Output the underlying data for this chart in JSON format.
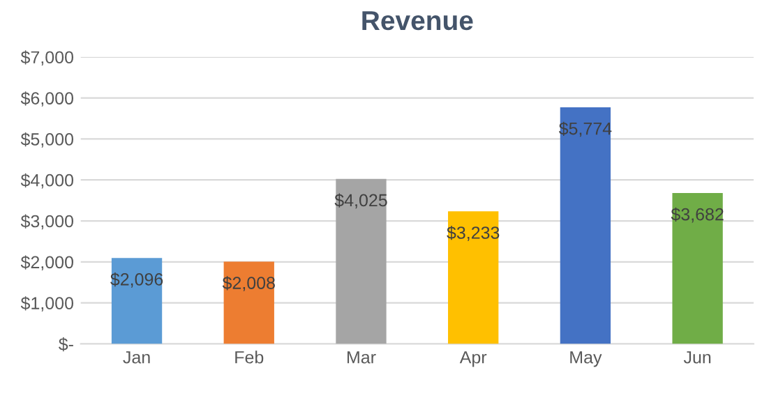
{
  "chart_data": {
    "type": "bar",
    "title": "Revenue",
    "categories": [
      "Jan",
      "Feb",
      "Mar",
      "Apr",
      "May",
      "Jun"
    ],
    "values": [
      2096,
      2008,
      4025,
      3233,
      5774,
      3682
    ],
    "colors": [
      "#5b9bd5",
      "#ed7d31",
      "#a5a5a5",
      "#ffc000",
      "#4472c4",
      "#70ad47"
    ],
    "value_labels": [
      "$2,096",
      "$2,008",
      "$4,025",
      "$3,233",
      "$5,774",
      "$3,682"
    ],
    "ylim": [
      0,
      7000
    ],
    "yticks": [
      {
        "value": 0,
        "label": "$-"
      },
      {
        "value": 1000,
        "label": "$1,000"
      },
      {
        "value": 2000,
        "label": "$2,000"
      },
      {
        "value": 3000,
        "label": "$3,000"
      },
      {
        "value": 4000,
        "label": "$4,000"
      },
      {
        "value": 5000,
        "label": "$5,000"
      },
      {
        "value": 6000,
        "label": "$6,000"
      },
      {
        "value": 7000,
        "label": "$7,000"
      }
    ],
    "grid": "y",
    "legend": false
  }
}
